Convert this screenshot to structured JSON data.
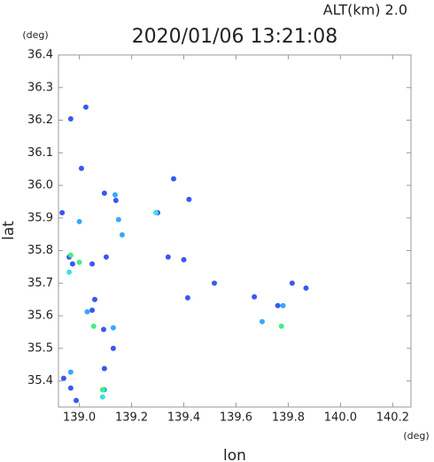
{
  "chart_data": {
    "type": "scatter",
    "title": "2020/01/06 13:21:08",
    "subtitle": "ALT(km) 2.0",
    "y_unit": "(deg)",
    "x_unit": "(deg)",
    "x_label": "lon",
    "y_label": "lat",
    "xlim": [
      138.92,
      140.27
    ],
    "ylim": [
      35.32,
      36.4
    ],
    "xticks": [
      {
        "value": 139,
        "label": "139.0"
      },
      139.2,
      139.4,
      139.6,
      139.8,
      {
        "value": 140,
        "label": "140.0"
      },
      140.2
    ],
    "yticks": [
      35.4,
      35.5,
      35.6,
      35.7,
      35.8,
      35.9,
      {
        "value": 36,
        "label": "36.0"
      },
      36.1,
      36.2,
      36.3,
      36.4
    ],
    "grid": false,
    "series": [
      {
        "color": "#3a58f0",
        "x": [
          138.967,
          139.025,
          139.008,
          139.096,
          138.934,
          139.14,
          138.961,
          138.974,
          139.049,
          139.103,
          139.059,
          139.049,
          139.093,
          139.13,
          139.096,
          138.94,
          138.967,
          138.988,
          139.361,
          139.42,
          139.3,
          139.34,
          139.4,
          139.517,
          139.67,
          139.815,
          139.868,
          139.76,
          139.415
        ],
        "y": [
          36.204,
          36.24,
          36.052,
          35.976,
          35.916,
          35.954,
          35.78,
          35.759,
          35.759,
          35.78,
          35.65,
          35.617,
          35.558,
          35.5,
          35.438,
          35.408,
          35.378,
          35.34,
          36.02,
          35.957,
          35.916,
          35.78,
          35.772,
          35.7,
          35.658,
          35.7,
          35.685,
          35.631,
          35.655
        ]
      },
      {
        "color": "#38a8ff",
        "x": [
          139.137,
          139.0,
          139.15,
          139.164,
          139.7,
          139.78,
          139.13,
          139.03,
          138.967,
          139.096
        ],
        "y": [
          35.971,
          35.889,
          35.895,
          35.848,
          35.582,
          35.631,
          35.563,
          35.612,
          35.427,
          35.373
        ]
      },
      {
        "color": "#40e0e0",
        "x": [
          138.961,
          139.293,
          139.089
        ],
        "y": [
          35.734,
          35.916,
          35.351
        ]
      },
      {
        "color": "#40ee80",
        "x": [
          139.0,
          139.055,
          139.774,
          139.089,
          138.967
        ],
        "y": [
          35.764,
          35.568,
          35.568,
          35.373,
          35.786
        ]
      }
    ]
  }
}
